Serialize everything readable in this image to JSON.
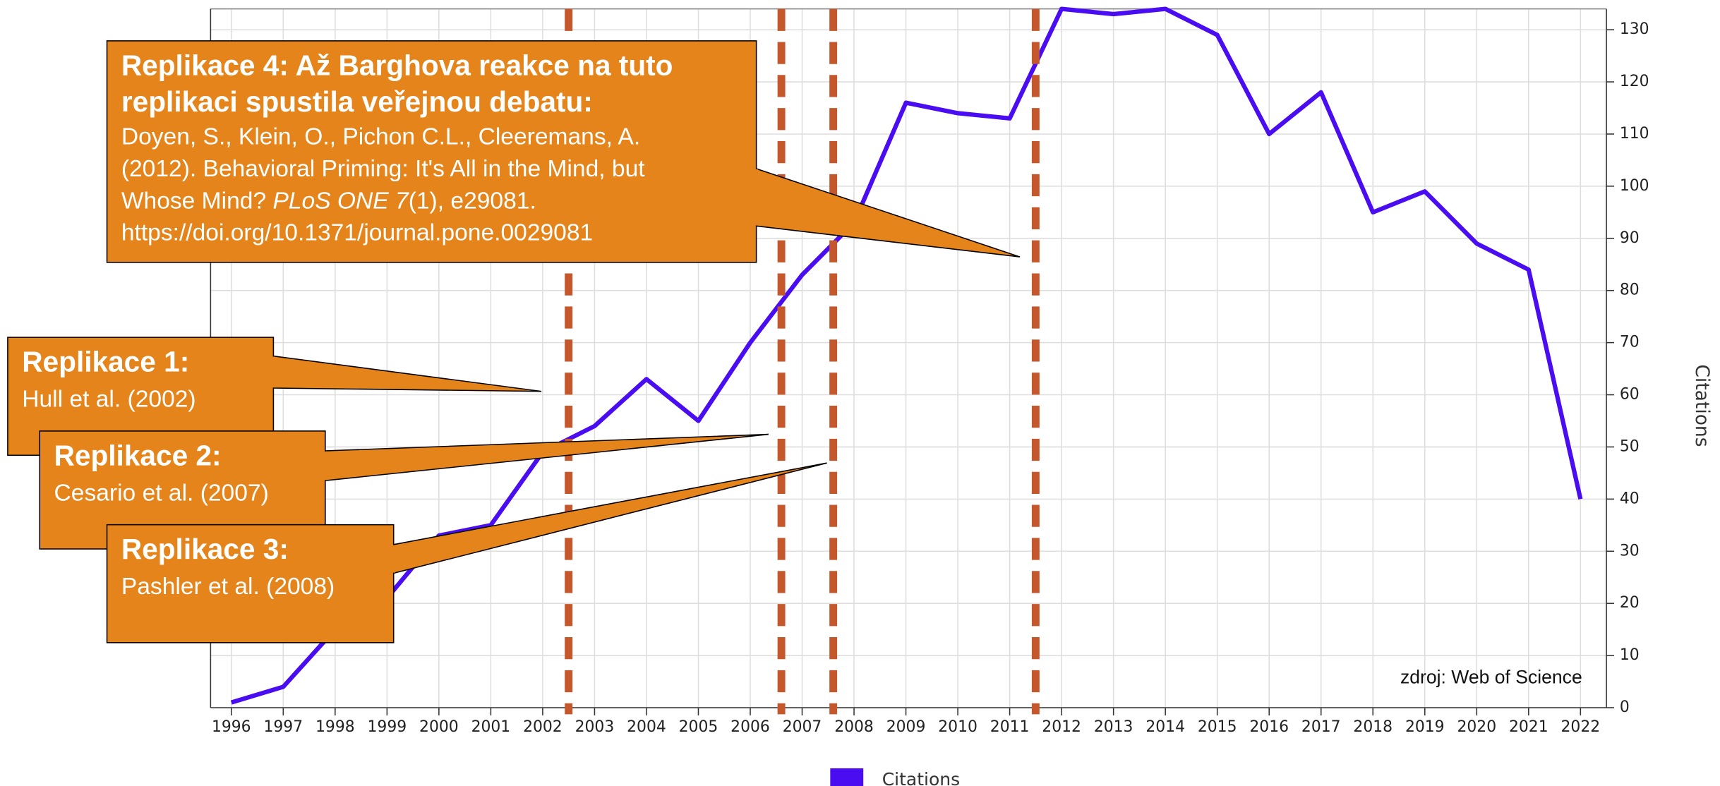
{
  "chart_data": {
    "type": "line",
    "y_axis_label": "Citations",
    "source": "zdroj: Web of Science",
    "x": [
      1996,
      1997,
      1998,
      1999,
      2000,
      2001,
      2002,
      2003,
      2004,
      2005,
      2006,
      2007,
      2008,
      2009,
      2010,
      2011,
      2012,
      2013,
      2014,
      2015,
      2016,
      2017,
      2018,
      2019,
      2020,
      2021,
      2022
    ],
    "series": [
      {
        "name": "Citations",
        "color": "#4a0cf0",
        "values": [
          1,
          4,
          15,
          21,
          33,
          35,
          49,
          54,
          63,
          55,
          70,
          83,
          93,
          116,
          114,
          113,
          134,
          133,
          134,
          129,
          110,
          118,
          95,
          99,
          89,
          84,
          40
        ]
      }
    ],
    "xlim": [
      1995.6,
      2022.5
    ],
    "xticks": [
      1996,
      1997,
      1998,
      1999,
      2000,
      2001,
      2002,
      2003,
      2004,
      2005,
      2006,
      2007,
      2008,
      2009,
      2010,
      2011,
      2012,
      2013,
      2014,
      2015,
      2016,
      2017,
      2018,
      2019,
      2020,
      2021,
      2022
    ],
    "ylim": [
      0,
      134
    ],
    "yticks": [
      0,
      10,
      20,
      30,
      40,
      50,
      60,
      70,
      80,
      90,
      100,
      110,
      120,
      130
    ],
    "grid": true,
    "legend": "bottom",
    "reference_lines": {
      "color": "#c4572b",
      "x": [
        2002.5,
        2006.6,
        2007.6,
        2011.5
      ]
    },
    "annotations": [
      {
        "title": [
          "Replikace 1:"
        ],
        "body": [
          [
            "Hull et al. (2002)"
          ]
        ]
      },
      {
        "title": [
          "Replikace 2:"
        ],
        "body": [
          [
            "Cesario et al. (2007)"
          ]
        ]
      },
      {
        "title": [
          "Replikace 3:"
        ],
        "body": [
          [
            "Pashler et al. (2008)"
          ]
        ]
      },
      {
        "title": [
          "Replikace 4: Až Barghova reakce na tuto",
          "replikaci spustila veřejnou debatu:"
        ],
        "body": [
          [
            "Doyen, S., Klein, O., Pichon C.L., Cleeremans, A."
          ],
          [
            "(2012). Behavioral Priming: It's All in the Mind, but"
          ],
          [
            "Whose Mind? ",
            {
              "text": "PLoS ONE 7",
              "italic": true
            },
            "(1), e29081."
          ],
          [
            "https://doi.org/10.1371/journal.pone.0029081"
          ]
        ]
      }
    ]
  }
}
